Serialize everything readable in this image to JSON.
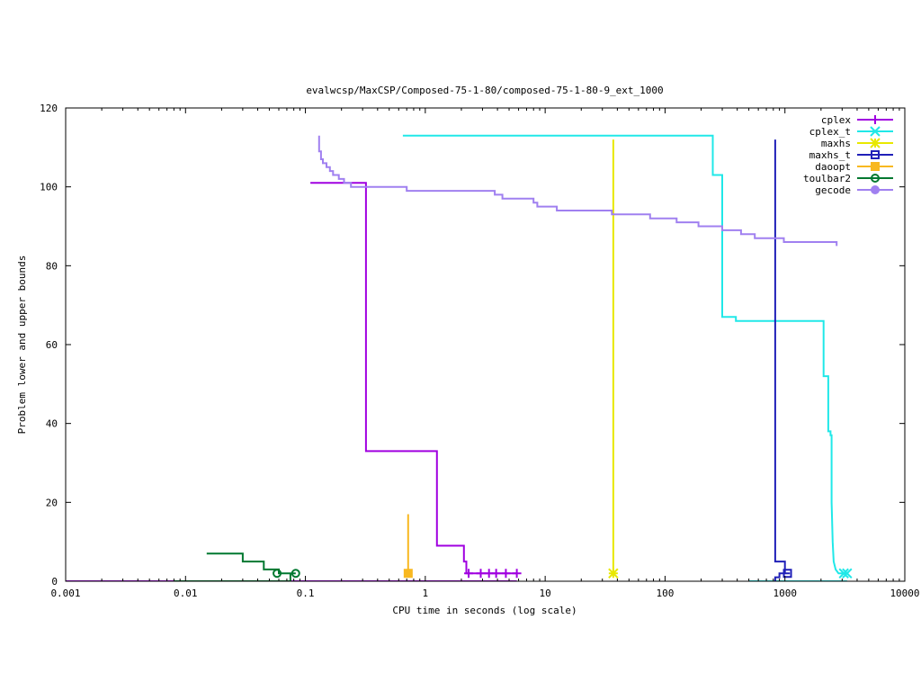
{
  "chart_data": {
    "type": "line",
    "title": "evalwcsp/MaxCSP/Composed-75-1-80/composed-75-1-80-9_ext_1000",
    "xlabel": "CPU time in seconds (log scale)",
    "ylabel": "Problem lower and upper bounds",
    "xscale": "log",
    "xlim": [
      0.001,
      10000
    ],
    "ylim": [
      0,
      120
    ],
    "x_ticks": [
      {
        "value": 0.001,
        "label": "0.001"
      },
      {
        "value": 0.01,
        "label": "0.01"
      },
      {
        "value": 0.1,
        "label": "0.1"
      },
      {
        "value": 1,
        "label": "1"
      },
      {
        "value": 10,
        "label": "10"
      },
      {
        "value": 100,
        "label": "100"
      },
      {
        "value": 1000,
        "label": "1000"
      },
      {
        "value": 10000,
        "label": "10000"
      }
    ],
    "y_ticks": [
      {
        "value": 0,
        "label": "0"
      },
      {
        "value": 20,
        "label": "20"
      },
      {
        "value": 40,
        "label": "40"
      },
      {
        "value": 60,
        "label": "60"
      },
      {
        "value": 80,
        "label": "80"
      },
      {
        "value": 100,
        "label": "100"
      },
      {
        "value": 120,
        "label": "120"
      }
    ],
    "grid": false,
    "legend_position": "top-right",
    "series": [
      {
        "name": "cplex",
        "color": "#a000e0",
        "marker": "plus",
        "upper": [
          [
            0.11,
            101
          ],
          [
            0.32,
            101
          ],
          [
            0.32,
            33
          ],
          [
            1.25,
            33
          ],
          [
            1.25,
            9
          ],
          [
            2.1,
            9
          ],
          [
            2.1,
            5
          ],
          [
            2.2,
            5
          ],
          [
            2.2,
            2
          ],
          [
            5.8,
            2
          ]
        ],
        "lower": [
          [
            0.001,
            0
          ],
          [
            5.8,
            0
          ]
        ],
        "marker_points": [
          [
            2.3,
            2
          ],
          [
            2.9,
            2
          ],
          [
            3.4,
            2
          ],
          [
            3.9,
            2
          ],
          [
            4.7,
            2
          ],
          [
            5.8,
            2
          ]
        ]
      },
      {
        "name": "cplex_t",
        "color": "#20e8e8",
        "marker": "cross",
        "upper": [
          [
            0.65,
            113
          ],
          [
            250,
            113
          ],
          [
            250,
            103
          ],
          [
            300,
            103
          ],
          [
            300,
            67
          ],
          [
            390,
            67
          ],
          [
            390,
            66
          ],
          [
            2100,
            66
          ],
          [
            2100,
            52
          ],
          [
            2300,
            52
          ],
          [
            2300,
            38
          ],
          [
            2400,
            38
          ],
          [
            2400,
            37
          ],
          [
            2450,
            37
          ],
          [
            2450,
            20
          ],
          [
            2500,
            10
          ],
          [
            2550,
            5
          ],
          [
            2650,
            3
          ],
          [
            2800,
            2
          ],
          [
            3300,
            2
          ]
        ],
        "lower": [
          [
            500,
            0
          ],
          [
            3300,
            0
          ]
        ],
        "marker_points": [
          [
            3100,
            2
          ],
          [
            3300,
            2
          ]
        ]
      },
      {
        "name": "maxhs",
        "color": "#e8e800",
        "marker": "star",
        "upper": [
          [
            37,
            112
          ],
          [
            37,
            2
          ]
        ],
        "lower": [],
        "marker_points": [
          [
            37,
            2
          ]
        ]
      },
      {
        "name": "maxhs_t",
        "color": "#2020b8",
        "marker": "square",
        "upper": [
          [
            830,
            112
          ],
          [
            830,
            5
          ],
          [
            1000,
            5
          ],
          [
            1000,
            2
          ],
          [
            1100,
            2
          ]
        ],
        "lower": [
          [
            830,
            0
          ],
          [
            830,
            1
          ],
          [
            900,
            1
          ],
          [
            900,
            2
          ],
          [
            1000,
            2
          ]
        ],
        "marker_points": [
          [
            1050,
            2
          ]
        ]
      },
      {
        "name": "daoopt",
        "color": "#f8b820",
        "marker": "filled-square",
        "upper": [
          [
            0.72,
            17
          ],
          [
            0.72,
            2
          ]
        ],
        "lower": [],
        "marker_points": [
          [
            0.72,
            2
          ]
        ]
      },
      {
        "name": "toulbar2",
        "color": "#007830",
        "marker": "circle",
        "upper": [
          [
            0.015,
            7
          ],
          [
            0.03,
            7
          ],
          [
            0.03,
            5
          ],
          [
            0.045,
            5
          ],
          [
            0.045,
            3
          ],
          [
            0.06,
            3
          ],
          [
            0.06,
            2
          ],
          [
            0.083,
            2
          ]
        ],
        "lower": [
          [
            0.008,
            0
          ],
          [
            0.075,
            0
          ],
          [
            0.075,
            2
          ]
        ],
        "marker_points": [
          [
            0.058,
            2
          ],
          [
            0.083,
            2
          ]
        ]
      },
      {
        "name": "gecode",
        "color": "#a080f0",
        "marker": "filled-circle",
        "upper": [
          [
            0.13,
            113
          ],
          [
            0.13,
            109
          ],
          [
            0.135,
            109
          ],
          [
            0.135,
            107
          ],
          [
            0.14,
            107
          ],
          [
            0.14,
            106
          ],
          [
            0.15,
            106
          ],
          [
            0.15,
            105
          ],
          [
            0.16,
            105
          ],
          [
            0.16,
            104
          ],
          [
            0.17,
            104
          ],
          [
            0.17,
            103
          ],
          [
            0.19,
            103
          ],
          [
            0.19,
            102
          ],
          [
            0.21,
            102
          ],
          [
            0.21,
            101
          ],
          [
            0.24,
            101
          ],
          [
            0.24,
            100
          ],
          [
            0.7,
            100
          ],
          [
            0.7,
            99
          ],
          [
            3.8,
            99
          ],
          [
            3.8,
            98
          ],
          [
            4.4,
            98
          ],
          [
            4.4,
            97
          ],
          [
            8,
            97
          ],
          [
            8,
            96
          ],
          [
            8.6,
            96
          ],
          [
            8.6,
            95
          ],
          [
            12.5,
            95
          ],
          [
            12.5,
            94
          ],
          [
            36,
            94
          ],
          [
            36,
            93
          ],
          [
            75,
            93
          ],
          [
            75,
            92
          ],
          [
            125,
            92
          ],
          [
            125,
            91
          ],
          [
            190,
            91
          ],
          [
            190,
            90
          ],
          [
            300,
            90
          ],
          [
            300,
            89
          ],
          [
            430,
            89
          ],
          [
            430,
            88
          ],
          [
            560,
            88
          ],
          [
            560,
            87
          ],
          [
            980,
            87
          ],
          [
            980,
            86
          ],
          [
            2700,
            86
          ],
          [
            2700,
            85
          ]
        ],
        "lower": [],
        "marker_points": []
      }
    ]
  }
}
